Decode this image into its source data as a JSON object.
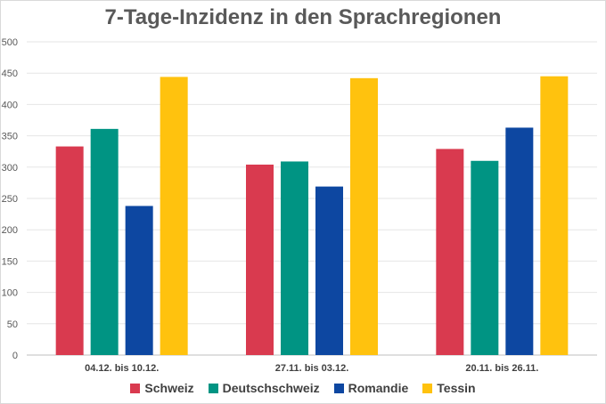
{
  "chart_data": {
    "type": "bar",
    "title": "7-Tage-Inzidenz in den Sprachregionen",
    "xlabel": "",
    "ylabel": "",
    "ylim": [
      0,
      500
    ],
    "yticks": [
      0,
      50,
      100,
      150,
      200,
      250,
      300,
      350,
      400,
      450,
      500
    ],
    "grid": true,
    "legend_position": "bottom",
    "categories": [
      "04.12. bis 10.12.",
      "27.11. bis 03.12.",
      "20.11. bis 26.11."
    ],
    "series": [
      {
        "name": "Schweiz",
        "color": "#d93a4f",
        "values": [
          333,
          304,
          329
        ]
      },
      {
        "name": "Deutschschweiz",
        "color": "#009483",
        "values": [
          361,
          309,
          310
        ]
      },
      {
        "name": "Romandie",
        "color": "#0d47a1",
        "values": [
          238,
          269,
          363
        ]
      },
      {
        "name": "Tessin",
        "color": "#ffc20e",
        "values": [
          444,
          442,
          445
        ]
      }
    ]
  }
}
